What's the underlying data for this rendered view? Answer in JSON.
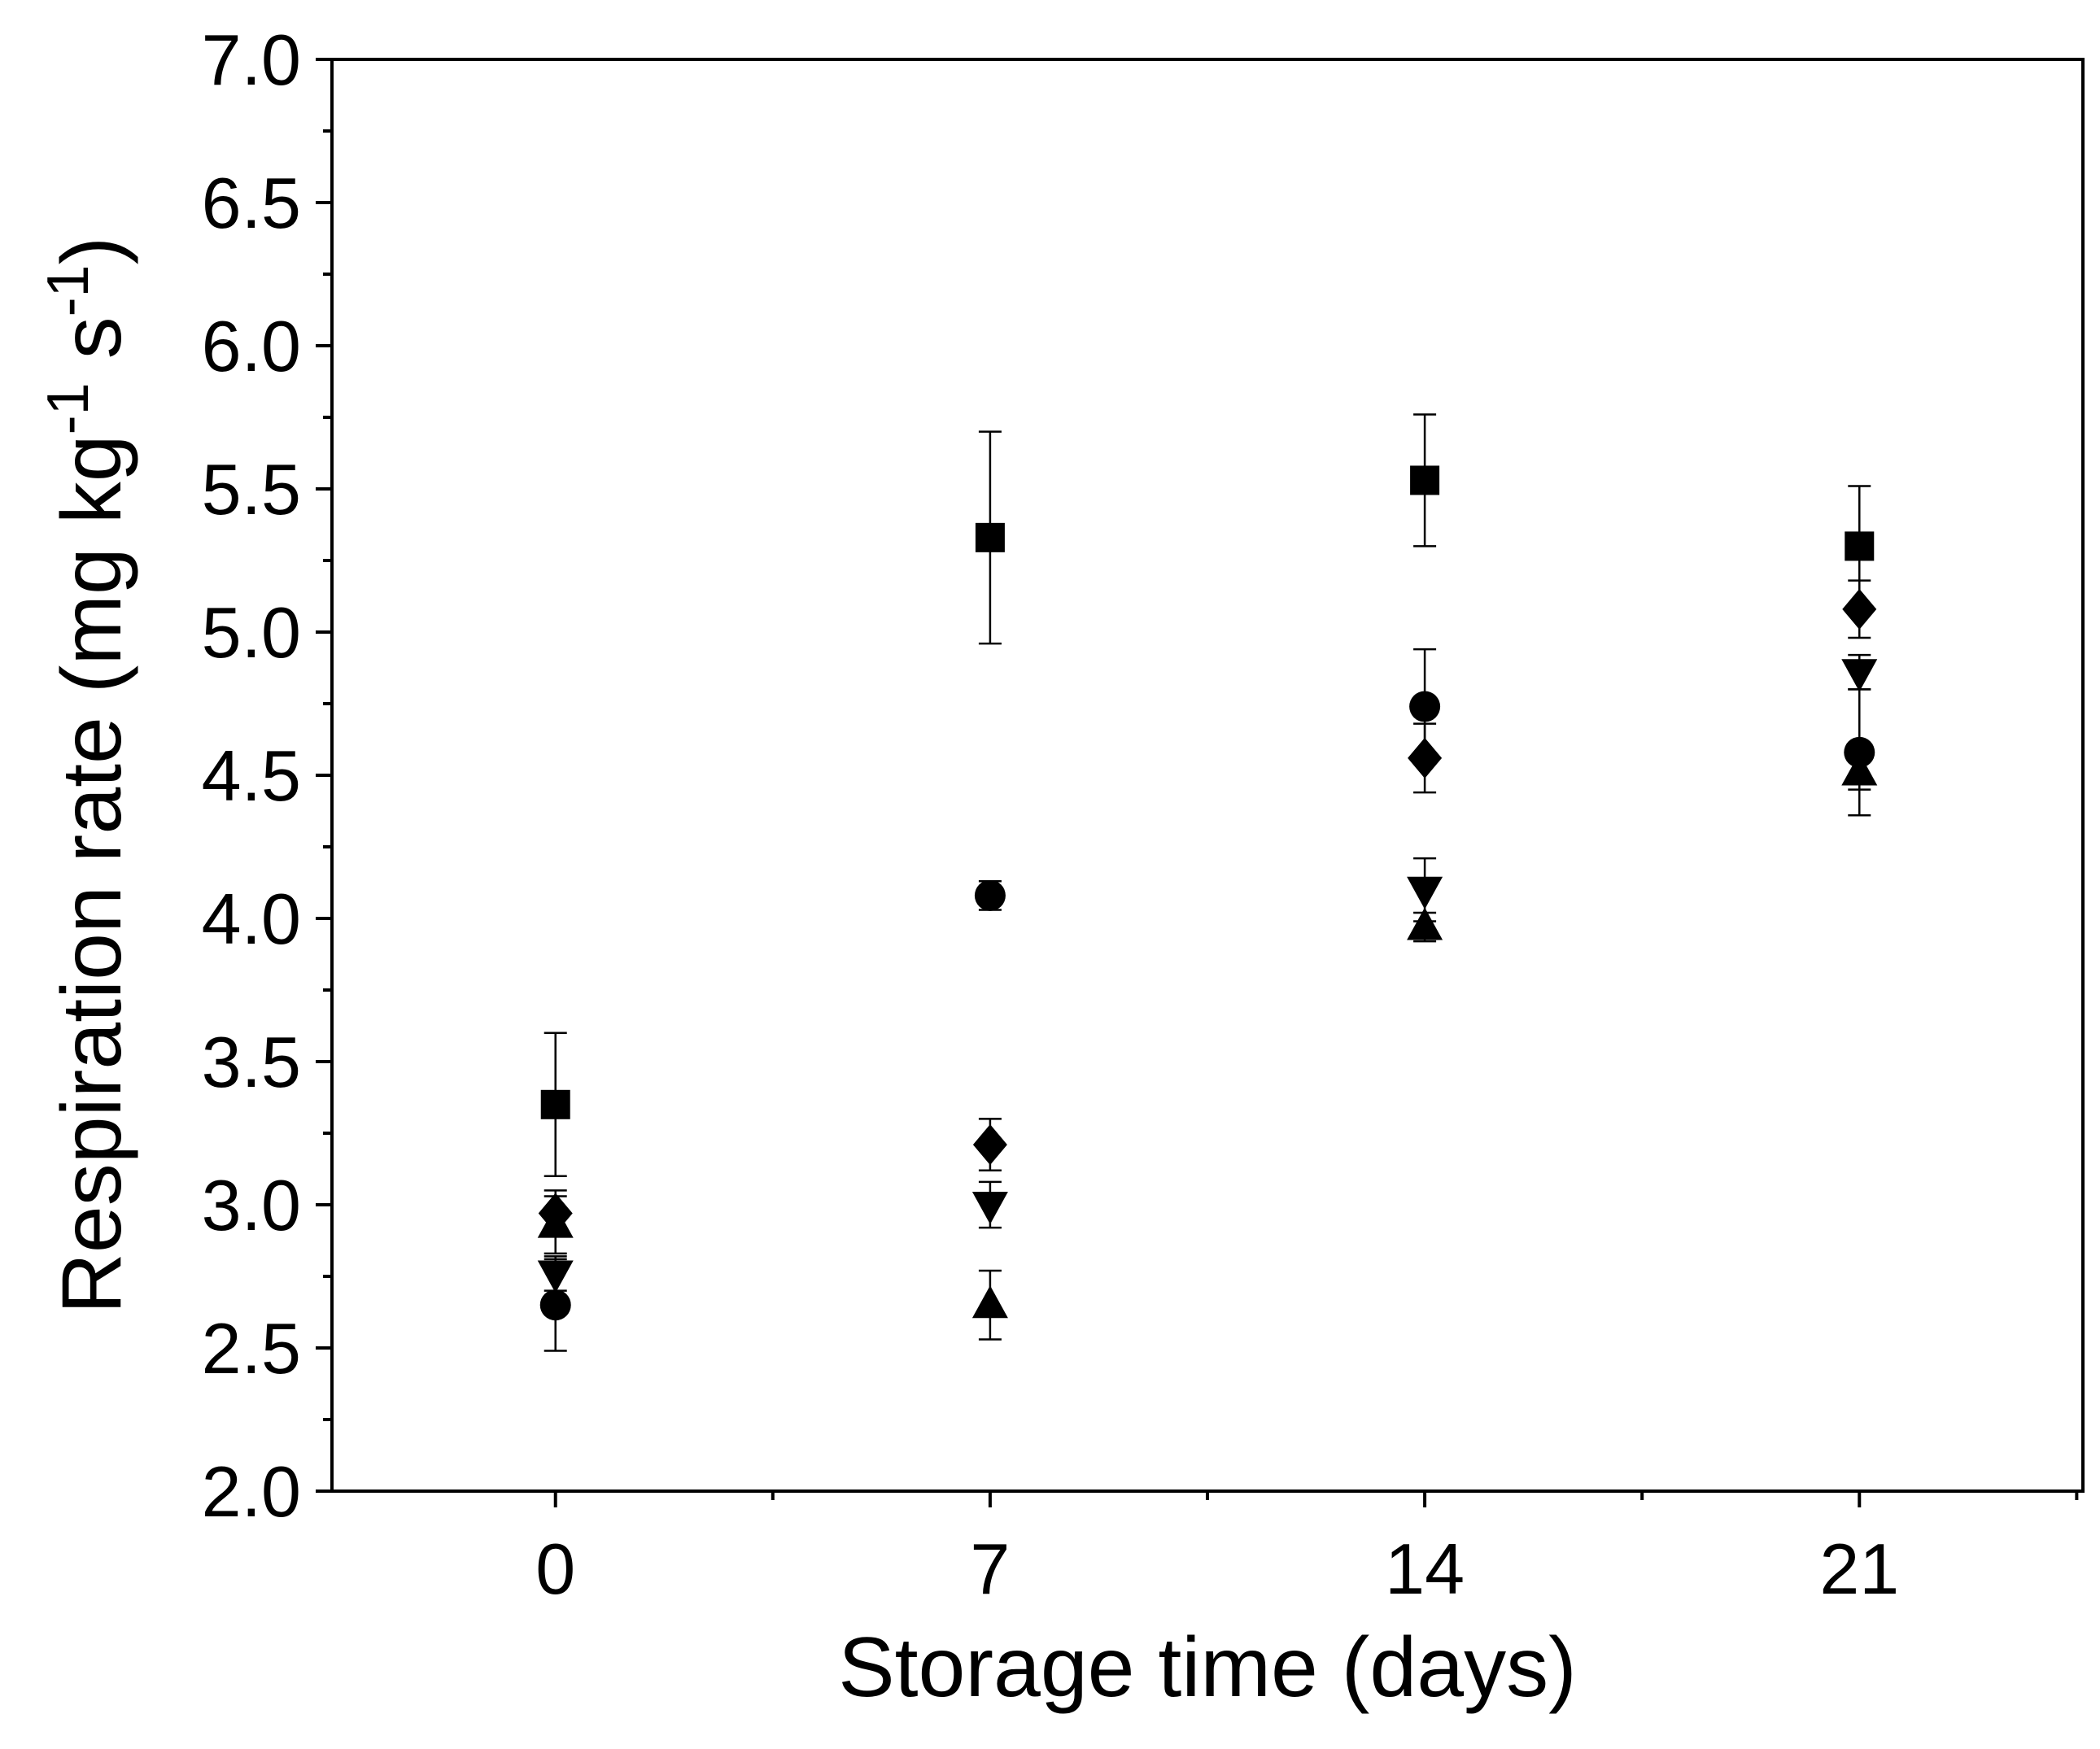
{
  "chart_data": {
    "type": "scatter",
    "title": "",
    "xlabel": "Storage time (days)",
    "ylabel": {
      "parts": [
        {
          "text": "Respiration rate (mg kg",
          "sup": false
        },
        {
          "text": "-1",
          "sup": true
        },
        {
          "text": " s",
          "sup": false
        },
        {
          "text": "-1",
          "sup": true
        },
        {
          "text": ")",
          "sup": false
        }
      ]
    },
    "xlim": [
      -3.6,
      24.6
    ],
    "ylim": [
      2.0,
      7.0
    ],
    "x_ticks": [
      0,
      7,
      14,
      21
    ],
    "x_tick_labels": [
      "0",
      "7",
      "14",
      "21"
    ],
    "x_minor_ticks": [
      3.5,
      10.5,
      17.5,
      24.5
    ],
    "y_ticks": [
      2.0,
      2.5,
      3.0,
      3.5,
      4.0,
      4.5,
      5.0,
      5.5,
      6.0,
      6.5,
      7.0
    ],
    "y_tick_labels": [
      "2.0",
      "2.5",
      "3.0",
      "3.5",
      "4.0",
      "4.5",
      "5.0",
      "5.5",
      "6.0",
      "6.5",
      "7.0"
    ],
    "y_minor_step": 0.25,
    "grid": false,
    "legend": "none",
    "marker_color": "#000000",
    "series": [
      {
        "marker": "square",
        "points": [
          {
            "x": 0,
            "y": 3.35,
            "err": 0.25
          },
          {
            "x": 7,
            "y": 5.33,
            "err": 0.37
          },
          {
            "x": 14,
            "y": 5.53,
            "err": 0.23
          },
          {
            "x": 21,
            "y": 5.3,
            "err": 0.21
          }
        ]
      },
      {
        "marker": "circle",
        "points": [
          {
            "x": 0,
            "y": 2.65,
            "err": 0.16
          },
          {
            "x": 7,
            "y": 4.08,
            "err": 0.05
          },
          {
            "x": 14,
            "y": 4.74,
            "err": 0.2
          },
          {
            "x": 21,
            "y": 4.58,
            "err": 0.22
          }
        ]
      },
      {
        "marker": "triangle-up",
        "points": [
          {
            "x": 0,
            "y": 2.93,
            "err": 0.1
          },
          {
            "x": 7,
            "y": 2.65,
            "err": 0.12
          },
          {
            "x": 14,
            "y": 3.97,
            "err": 0.05
          },
          {
            "x": 21,
            "y": 4.51,
            "err": 0.06
          }
        ]
      },
      {
        "marker": "triangle-down",
        "points": [
          {
            "x": 0,
            "y": 2.76,
            "err": 0.06
          },
          {
            "x": 7,
            "y": 3.0,
            "err": 0.08
          },
          {
            "x": 14,
            "y": 4.1,
            "err": 0.11
          },
          {
            "x": 21,
            "y": 4.86,
            "err": 0.06
          }
        ]
      },
      {
        "marker": "diamond",
        "points": [
          {
            "x": 0,
            "y": 2.97,
            "err": 0.08
          },
          {
            "x": 7,
            "y": 3.21,
            "err": 0.09
          },
          {
            "x": 14,
            "y": 4.56,
            "err": 0.12
          },
          {
            "x": 21,
            "y": 5.08,
            "err": 0.1
          }
        ]
      }
    ]
  }
}
